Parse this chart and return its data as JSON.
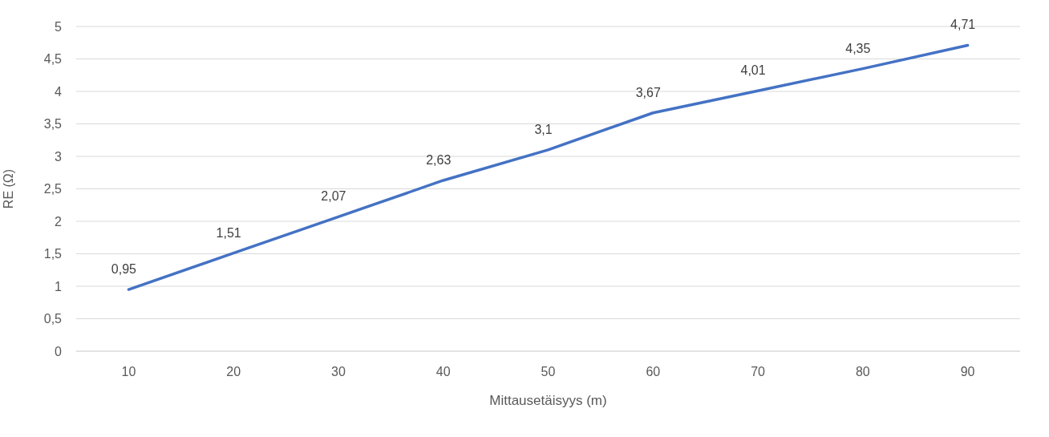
{
  "chart_data": {
    "type": "line",
    "xlabel": "Mittausetäisyys (m)",
    "ylabel": "RE (Ω)",
    "categories": [
      "10",
      "20",
      "30",
      "40",
      "50",
      "60",
      "70",
      "80",
      "90"
    ],
    "series": [
      {
        "color": "#4472c4",
        "values": [
          0.95,
          1.51,
          2.07,
          2.63,
          3.1,
          3.67,
          4.01,
          4.35,
          4.71
        ],
        "value_labels": [
          "0,95",
          "1,51",
          "2,07",
          "2,63",
          "3,1",
          "3,67",
          "4,01",
          "4,35",
          "4,71"
        ]
      }
    ],
    "ylim": [
      0,
      5
    ],
    "yticks": [
      0,
      {
        "value": 0.5,
        "label": "0,5"
      },
      1,
      {
        "value": 1.5,
        "label": "1,5"
      },
      2,
      {
        "value": 2.5,
        "label": "2,5"
      },
      3,
      {
        "value": 3.5,
        "label": "3,5"
      },
      4,
      {
        "value": 4.5,
        "label": "4,5"
      },
      5
    ],
    "grid": "y",
    "legend": false,
    "marker": "none",
    "line_style": "solid"
  }
}
